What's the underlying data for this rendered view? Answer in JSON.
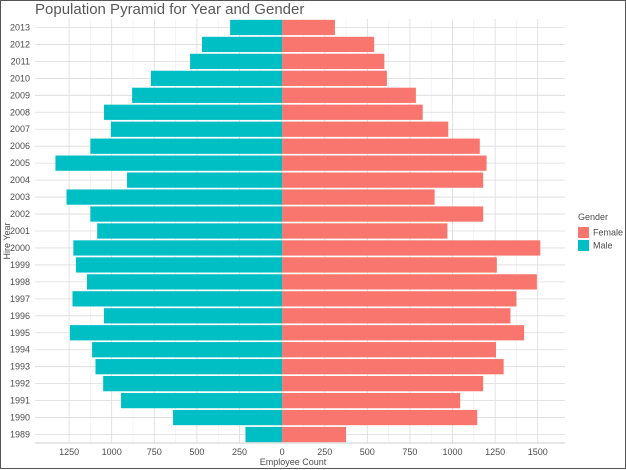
{
  "chart_data": {
    "type": "bar",
    "orientation": "horizontal",
    "title": "Population Pyramid for Year and Gender",
    "xlabel": "Employee Count",
    "ylabel": "Hire Year",
    "xlim": [
      -1450,
      1660
    ],
    "x_ticks": [
      -1250,
      -1000,
      -750,
      -500,
      -250,
      0,
      250,
      500,
      750,
      1000,
      1250,
      1500
    ],
    "x_tick_labels": [
      "1250",
      "1000",
      "750",
      "500",
      "250",
      "0",
      "250",
      "500",
      "750",
      "1000",
      "1250",
      "1500"
    ],
    "categories": [
      "1989",
      "1990",
      "1991",
      "1992",
      "1993",
      "1994",
      "1995",
      "1996",
      "1997",
      "1998",
      "1999",
      "2000",
      "2001",
      "2002",
      "2003",
      "2004",
      "2005",
      "2006",
      "2007",
      "2008",
      "2009",
      "2010",
      "2011",
      "2012",
      "2013"
    ],
    "grid": true,
    "legend": {
      "title": "Gender",
      "placement": "right"
    },
    "series": [
      {
        "name": "Female",
        "color": "#F8766D",
        "values": [
          375,
          1145,
          1045,
          1180,
          1300,
          1255,
          1420,
          1340,
          1375,
          1495,
          1260,
          1515,
          970,
          1180,
          895,
          1180,
          1200,
          1160,
          975,
          825,
          785,
          615,
          600,
          540,
          310
        ]
      },
      {
        "name": "Male",
        "color": "#00BFC4",
        "values": [
          -215,
          -640,
          -945,
          -1050,
          -1095,
          -1115,
          -1245,
          -1045,
          -1230,
          -1145,
          -1210,
          -1225,
          -1085,
          -1125,
          -1265,
          -910,
          -1330,
          -1125,
          -1005,
          -1045,
          -880,
          -770,
          -540,
          -470,
          -305
        ]
      }
    ]
  }
}
